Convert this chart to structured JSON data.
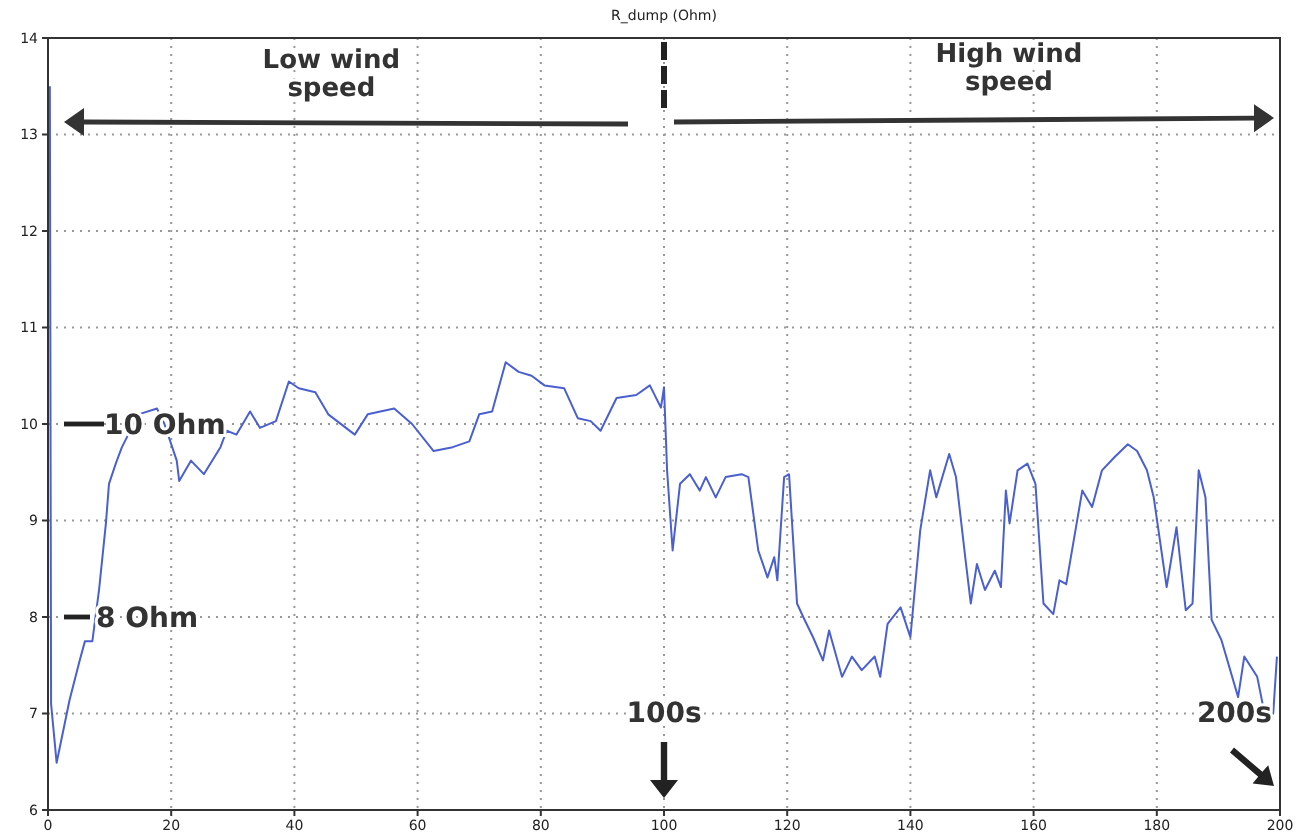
{
  "chart_data": {
    "type": "line",
    "title": "R_dump (Ohm)",
    "series": [
      {
        "color": "#4a5fd0",
        "x": [
          0.3,
          0.5,
          1.4,
          3.5,
          5.1,
          6.0,
          7.2,
          8.3,
          9.4,
          9.9,
          11.0,
          12.0,
          14.7,
          17.7,
          18.9,
          20.9,
          21.3,
          23.2,
          25.3,
          28.0,
          29.0,
          30.6,
          32.8,
          34.4,
          37.0,
          39.1,
          40.7,
          43.4,
          45.5,
          49.8,
          51.9,
          56.2,
          59.1,
          62.6,
          65.7,
          68.4,
          70.0,
          72.1,
          74.3,
          76.4,
          78.5,
          80.6,
          83.8,
          86.0,
          88.1,
          89.7,
          92.3,
          95.5,
          97.7,
          99.5,
          100,
          100.5,
          101.4,
          102.6,
          104.2,
          105.8,
          106.8,
          108.4,
          110.0,
          112.6,
          113.7,
          115.3,
          116.8,
          117.9,
          118.4,
          119.5,
          120.3,
          121.6,
          122.6,
          124.2,
          125.8,
          126.8,
          128.9,
          130.5,
          132.1,
          134.2,
          135.1,
          136.3,
          138.4,
          140.0,
          141.6,
          143.2,
          144.2,
          146.3,
          147.4,
          148.9,
          149.8,
          150.8,
          152.1,
          153.7,
          154.7,
          155.5,
          156.1,
          157.4,
          159.0,
          160.3,
          161.6,
          163.2,
          164.2,
          165.3,
          166.8,
          167.9,
          169.5,
          171.1,
          173.2,
          175.3,
          176.8,
          178.4,
          179.5,
          181.6,
          183.2,
          184.7,
          185.8,
          186.8,
          187.9,
          188.9,
          190.5,
          193.2,
          194.2,
          196.3,
          197.4,
          198.9,
          199.5
        ],
        "values": [
          13.5,
          7.1,
          6.49,
          7.14,
          7.54,
          7.75,
          7.75,
          8.29,
          8.97,
          9.38,
          9.59,
          9.76,
          10.1,
          10.16,
          10.0,
          9.62,
          9.41,
          9.62,
          9.48,
          9.76,
          9.93,
          9.89,
          10.13,
          9.96,
          10.03,
          10.44,
          10.37,
          10.33,
          10.1,
          9.89,
          10.1,
          10.16,
          10.0,
          9.72,
          9.76,
          9.82,
          10.1,
          10.13,
          10.64,
          10.54,
          10.5,
          10.4,
          10.37,
          10.06,
          10.03,
          9.93,
          10.27,
          10.3,
          10.4,
          10.17,
          10.38,
          9.52,
          8.69,
          9.38,
          9.48,
          9.31,
          9.45,
          9.24,
          9.45,
          9.48,
          9.45,
          8.69,
          8.41,
          8.62,
          8.38,
          9.45,
          9.48,
          8.14,
          8.0,
          7.79,
          7.55,
          7.86,
          7.38,
          7.59,
          7.45,
          7.59,
          7.38,
          7.93,
          8.1,
          7.79,
          8.9,
          9.52,
          9.24,
          9.69,
          9.45,
          8.62,
          8.14,
          8.55,
          8.28,
          8.48,
          8.31,
          9.31,
          8.97,
          9.52,
          9.59,
          9.38,
          8.14,
          8.03,
          8.38,
          8.34,
          8.9,
          9.31,
          9.14,
          9.52,
          9.66,
          9.79,
          9.72,
          9.52,
          9.24,
          8.31,
          8.93,
          8.07,
          8.14,
          9.52,
          9.24,
          7.97,
          7.76,
          7.17,
          7.59,
          7.38,
          7.03,
          7.0,
          7.59
        ]
      }
    ],
    "xlim": [
      0,
      200
    ],
    "xticks": [
      0,
      20,
      40,
      60,
      80,
      100,
      120,
      140,
      160,
      180,
      200
    ],
    "ylim": [
      6,
      14
    ],
    "yticks": [
      6,
      7,
      8,
      9,
      10,
      11,
      12,
      13,
      14
    ],
    "grid": true,
    "marker": "none",
    "line_style": "solid",
    "annotations": [
      "Low wind speed",
      "High wind speed",
      "10 Ohm",
      "8 Ohm",
      "100s",
      "200s"
    ]
  }
}
